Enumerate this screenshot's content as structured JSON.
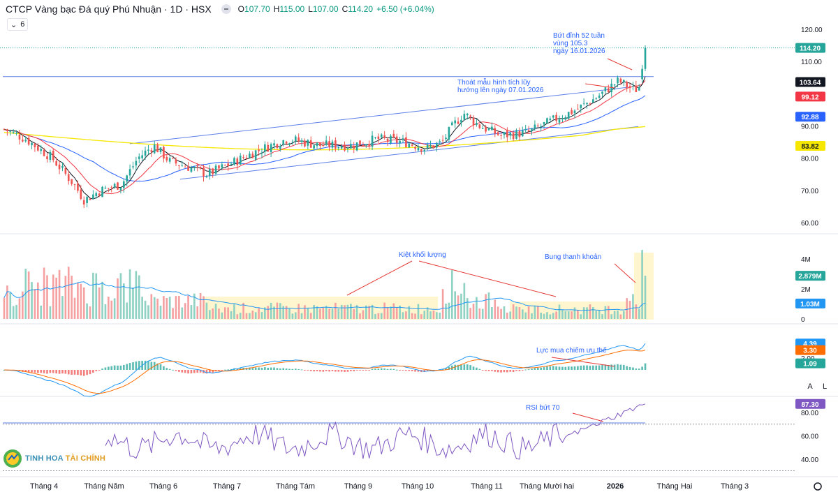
{
  "header": {
    "title": "CTCP Vàng bạc Đá quý Phú Nhuận · 1D · HSX",
    "open_label": "O",
    "open": "107.70",
    "high_label": "H",
    "high": "115.00",
    "low_label": "L",
    "low": "107.00",
    "close_label": "C",
    "close": "114.20",
    "change": "+6.50 (+6.04%)"
  },
  "indicator_toggle": {
    "count": "6"
  },
  "scale_buttons": {
    "auto": "A",
    "log": "L"
  },
  "logo": {
    "text_main": "TINH HOA",
    "text_accent": "TÀI CHÍNH"
  },
  "price_axis": {
    "ticks": [
      "120.00",
      "110.00",
      "100.00",
      "90.00",
      "80.00",
      "70.00",
      "60.00"
    ],
    "tick_values": [
      120,
      110,
      100,
      90,
      80,
      70,
      60
    ]
  },
  "volume_axis": {
    "ticks": [
      "4M",
      "2M",
      "0"
    ],
    "tick_values": [
      4,
      2,
      0
    ]
  },
  "macd_axis": {
    "ticks": [
      "2.00"
    ],
    "tick_values": [
      2
    ]
  },
  "rsi_axis": {
    "ticks": [
      "80.00",
      "60.00",
      "40.00"
    ],
    "tick_values": [
      80,
      60,
      40
    ]
  },
  "time_axis": [
    "Tháng 4",
    "Tháng Năm",
    "Tháng 6",
    "Tháng 7",
    "Tháng Tám",
    "Tháng 9",
    "Tháng 10",
    "Tháng 11",
    "Tháng Mười hai",
    "2026",
    "Tháng Hai",
    "Tháng 3"
  ],
  "price_badges": [
    {
      "label": "114.20",
      "value": 114.2,
      "color": "#26a69a"
    },
    {
      "label": "103.64",
      "value": 103.64,
      "color": "#131722"
    },
    {
      "label": "99.12",
      "value": 99.12,
      "color": "#f23645"
    },
    {
      "label": "92.88",
      "value": 92.88,
      "color": "#2962ff"
    },
    {
      "label": "83.82",
      "value": 83.82,
      "color": "#f5e700"
    }
  ],
  "volume_badges": [
    {
      "label": "2.879M",
      "value": 2.879,
      "color": "#26a69a"
    },
    {
      "label": "1.03M",
      "value": 1.03,
      "color": "#2196f3"
    }
  ],
  "macd_badges": [
    {
      "label": "4.39",
      "value": 4.39,
      "color": "#2196f3"
    },
    {
      "label": "3.30",
      "value": 3.3,
      "color": "#ff6d00"
    },
    {
      "label": "1.09",
      "value": 1.09,
      "color": "#26a69a"
    }
  ],
  "rsi_badges": [
    {
      "label": "87.30",
      "value": 87.3,
      "color": "#7e57c2"
    }
  ],
  "annotations": {
    "breakout_52w": [
      "Bứt đỉnh 52 tuần",
      "vùng 105.3",
      "ngày 16.01.2026"
    ],
    "pattern_exit": [
      "Thoát mẫu hình tích lũy",
      "hướng lên ngày 07.01.2026"
    ],
    "volume_dry": "Kiệt khối lượng",
    "liquidity_burst": "Bung thanh khoản",
    "buying_force": "Lực mua chiếm ưu thế",
    "rsi_break": "RSI bứt 70"
  },
  "colors": {
    "up": "#26a69a",
    "down": "#ef5350",
    "sma_short": "#131722",
    "sma_mid": "#f23645",
    "sma_long": "#2962ff",
    "sma_200": "#f5e700",
    "macd": "#2196f3",
    "signal": "#ff6d00",
    "rsi": "#7e57c2",
    "annotation": "#2962ff"
  },
  "chart_data": {
    "type": "candlestick",
    "symbol": "CTCP Vàng bạc Đá quý Phú Nhuận",
    "interval": "1D",
    "exchange": "HSX",
    "price_range": [
      57,
      123
    ],
    "last_bar": {
      "open": 107.7,
      "high": 115.0,
      "low": 107.0,
      "close": 114.2,
      "change": 6.5,
      "change_pct": 6.04
    },
    "price_series_anchors": [
      {
        "x": "Tháng 4",
        "close": 83
      },
      {
        "x": "Tháng 4 (low)",
        "close": 65
      },
      {
        "x": "Tháng Năm",
        "close": 72
      },
      {
        "x": "Tháng Năm (high)",
        "close": 84
      },
      {
        "x": "Tháng 6",
        "close": 76
      },
      {
        "x": "Tháng 7",
        "close": 80
      },
      {
        "x": "Tháng Tám",
        "close": 86
      },
      {
        "x": "Tháng 9",
        "close": 85
      },
      {
        "x": "Tháng 10",
        "close": 84
      },
      {
        "x": "Tháng 10 (high)",
        "close": 92
      },
      {
        "x": "Tháng 11",
        "close": 88
      },
      {
        "x": "Tháng Mười hai",
        "close": 88
      },
      {
        "x": "2026",
        "close": 96
      },
      {
        "x": "16.01.2026",
        "close": 114.2
      }
    ],
    "moving_averages": [
      {
        "name": "MA short",
        "last": 103.64
      },
      {
        "name": "MA mid",
        "last": 99.12
      },
      {
        "name": "MA long",
        "last": 92.88
      },
      {
        "name": "MA 200",
        "last": 83.82
      }
    ],
    "resistance_level": 105.3,
    "volume": {
      "last": 2.879,
      "ma": 1.03,
      "unit": "M",
      "range": [
        0,
        5
      ]
    },
    "macd": {
      "macd": 4.39,
      "signal": 3.3,
      "histogram": 1.09
    },
    "rsi": {
      "value": 87.3,
      "threshold": 70,
      "range": [
        30,
        95
      ]
    }
  }
}
